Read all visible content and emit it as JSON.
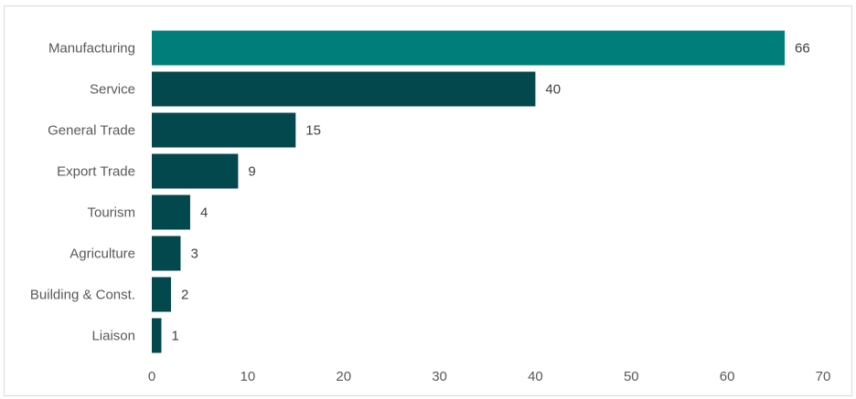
{
  "chart_data": {
    "type": "bar",
    "orientation": "horizontal",
    "categories": [
      "Manufacturing",
      "Service",
      "General Trade",
      "Export Trade",
      "Tourism",
      "Agriculture",
      "Building & Const.",
      "Liaison"
    ],
    "values": [
      66,
      40,
      15,
      9,
      4,
      3,
      2,
      1
    ],
    "xlim": [
      0,
      70
    ],
    "xticks": [
      0,
      10,
      20,
      30,
      40,
      50,
      60,
      70
    ],
    "grid": false,
    "legend": "none",
    "colors": {
      "highlight": "#007f7a",
      "default": "#03484c"
    },
    "highlight_index": 0
  }
}
